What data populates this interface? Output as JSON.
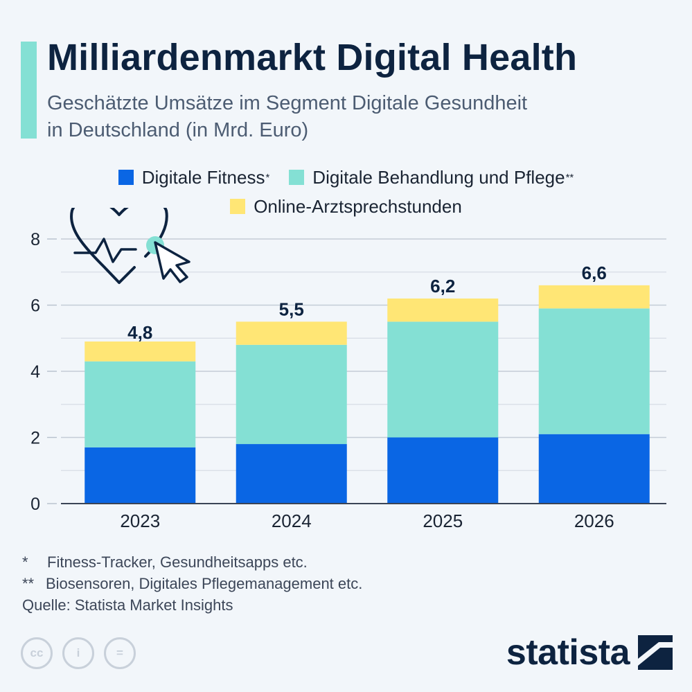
{
  "header": {
    "title": "Milliardenmarkt Digital Health",
    "subtitle_line1": "Geschätzte Umsätze im Segment Digitale Gesundheit",
    "subtitle_line2": "in Deutschland (in Mrd. Euro)"
  },
  "legend": {
    "items": [
      {
        "label": "Digitale Fitness",
        "note": "*",
        "color": "#0a66e4"
      },
      {
        "label": "Digitale Behandlung und Pflege",
        "note": "**",
        "color": "#84e0d4"
      },
      {
        "label": "Online-Arztsprechstunden",
        "note": "",
        "color": "#ffe675"
      }
    ]
  },
  "chart_data": {
    "type": "bar",
    "stacked": true,
    "categories": [
      "2023",
      "2024",
      "2025",
      "2026"
    ],
    "series": [
      {
        "name": "Digitale Fitness",
        "color": "#0a66e4",
        "values": [
          1.7,
          1.8,
          2.0,
          2.1
        ]
      },
      {
        "name": "Digitale Behandlung und Pflege",
        "color": "#84e0d4",
        "values": [
          2.6,
          3.0,
          3.5,
          3.8
        ]
      },
      {
        "name": "Online-Arztsprechstunden",
        "color": "#ffe675",
        "values": [
          0.6,
          0.7,
          0.7,
          0.7
        ]
      }
    ],
    "totals": [
      4.8,
      5.5,
      6.2,
      6.6
    ],
    "total_labels": [
      "4,8",
      "5,5",
      "6,2",
      "6,6"
    ],
    "ylim": [
      0,
      8
    ],
    "yticks": [
      0,
      2,
      4,
      6,
      8
    ],
    "minor_gridlines": [
      1,
      3,
      5,
      7
    ],
    "grid": true,
    "legend_position": "top-center"
  },
  "footnotes": {
    "items": [
      {
        "mark": "*",
        "text": "Fitness-Tracker, Gesundheitsapps etc."
      },
      {
        "mark": "**",
        "text": "Biosensoren, Digitales Pflegemanagement etc."
      }
    ],
    "source": "Quelle: Statista Market Insights"
  },
  "license": {
    "cc": "cc",
    "by": "i",
    "nd": "="
  },
  "brand": {
    "name": "statista"
  },
  "icons": {
    "illustration": "heart-pulse-cursor-icon",
    "brand": "statista-logo-icon"
  }
}
